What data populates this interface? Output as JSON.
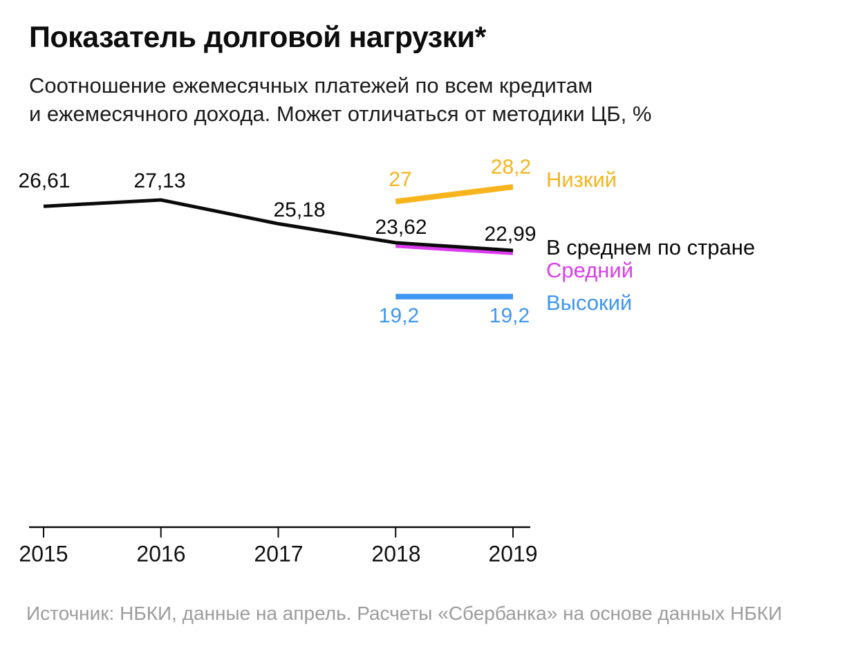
{
  "colors": {
    "text": "#111111",
    "source_text": "#9C9C9C",
    "axis": "#0a0a0a"
  },
  "chart_data": {
    "type": "line",
    "title": "Показатель долговой нагрузки*",
    "subtitle": [
      "Соотношение ежемесячных платежей по всем кредитам",
      "и ежемесячного дохода. Может отличаться от методики ЦБ, %"
    ],
    "source": "Источник: НБКИ, данные на апрель. Расчеты «Сбербанка» на основе данных НБКИ",
    "x": [
      2015,
      2016,
      2017,
      2018,
      2019
    ],
    "x_tick_labels": [
      "2015",
      "2016",
      "2017",
      "2018",
      "2019"
    ],
    "ylim": [
      19,
      29
    ],
    "grid": false,
    "legend_position": "right",
    "decimal_separator": ",",
    "unit": "%",
    "series": [
      {
        "name": "В среднем по стране",
        "role": "average",
        "color": "#0a0a0a",
        "values": [
          26.61,
          27.13,
          25.18,
          23.62,
          22.99
        ],
        "point_labels": [
          "26,61",
          "27,13",
          "25,18",
          "23,62",
          "22,99"
        ]
      },
      {
        "name": "Низкий",
        "role": "low",
        "color": "#F7B41D",
        "values": [
          null,
          null,
          null,
          27,
          28.2
        ],
        "point_labels": [
          null,
          null,
          null,
          "27",
          "28,2"
        ]
      },
      {
        "name": "Средний",
        "role": "middle",
        "color": "#DC3CEF",
        "values": [
          null,
          null,
          null,
          23.4,
          22.8
        ],
        "point_labels": [
          null,
          null,
          null,
          null,
          null
        ]
      },
      {
        "name": "Высокий",
        "role": "high",
        "color": "#3E96F4",
        "values": [
          null,
          null,
          null,
          19.2,
          19.2
        ],
        "point_labels": [
          null,
          null,
          null,
          "19,2",
          "19,2"
        ]
      }
    ]
  }
}
